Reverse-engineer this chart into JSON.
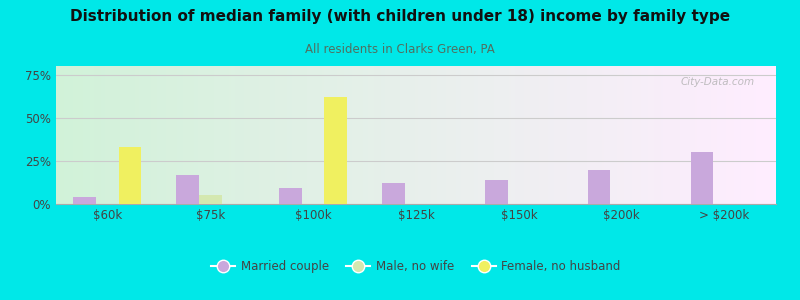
{
  "title": "Distribution of median family (with children under 18) income by family type",
  "subtitle": "All residents in Clarks Green, PA",
  "categories": [
    "$60k",
    "$75k",
    "$100k",
    "$125k",
    "$150k",
    "$200k",
    "> $200k"
  ],
  "married_couple": [
    4,
    17,
    9,
    12,
    14,
    20,
    30
  ],
  "male_no_wife": [
    0,
    5,
    0,
    0,
    0,
    0,
    0
  ],
  "female_no_husband": [
    33,
    0,
    62,
    0,
    0,
    0,
    0
  ],
  "color_married": "#c9a8dc",
  "color_male": "#d4e8b0",
  "color_female": "#f0f060",
  "background_outer": "#00e8e8",
  "ylim": [
    0,
    80
  ],
  "yticks": [
    0,
    25,
    50,
    75
  ],
  "ytick_labels": [
    "0%",
    "25%",
    "50%",
    "75%"
  ],
  "bar_width": 0.22,
  "legend_labels": [
    "Married couple",
    "Male, no wife",
    "Female, no husband"
  ],
  "watermark": "City-Data.com",
  "title_color": "#111111",
  "subtitle_color": "#507060",
  "tick_color": "#444444",
  "grid_color": "#cccccc"
}
